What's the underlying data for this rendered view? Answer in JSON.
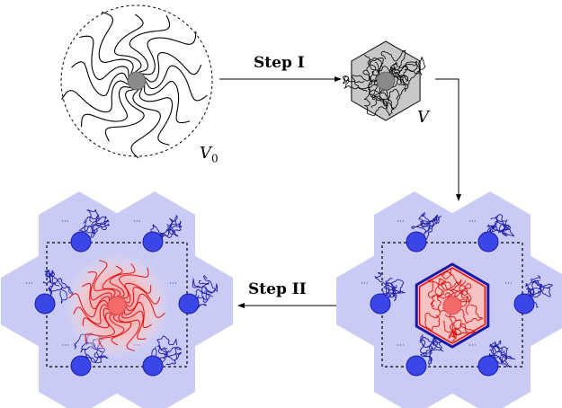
{
  "labels": {
    "step1": "Step I",
    "step2": "Step II",
    "v0_main": "V",
    "v0_sub": "0",
    "v": "V"
  },
  "colors": {
    "core_gray": "#8a8a8a",
    "hex_gray": "#c8c8c8",
    "hex_lattice": "#c9cbf5",
    "blue_core": "#3a47e6",
    "blue_chain": "#1a1aa8",
    "red_core": "#f26b6b",
    "red_chain": "#e01010",
    "red_glow": "#f7c2c2"
  }
}
